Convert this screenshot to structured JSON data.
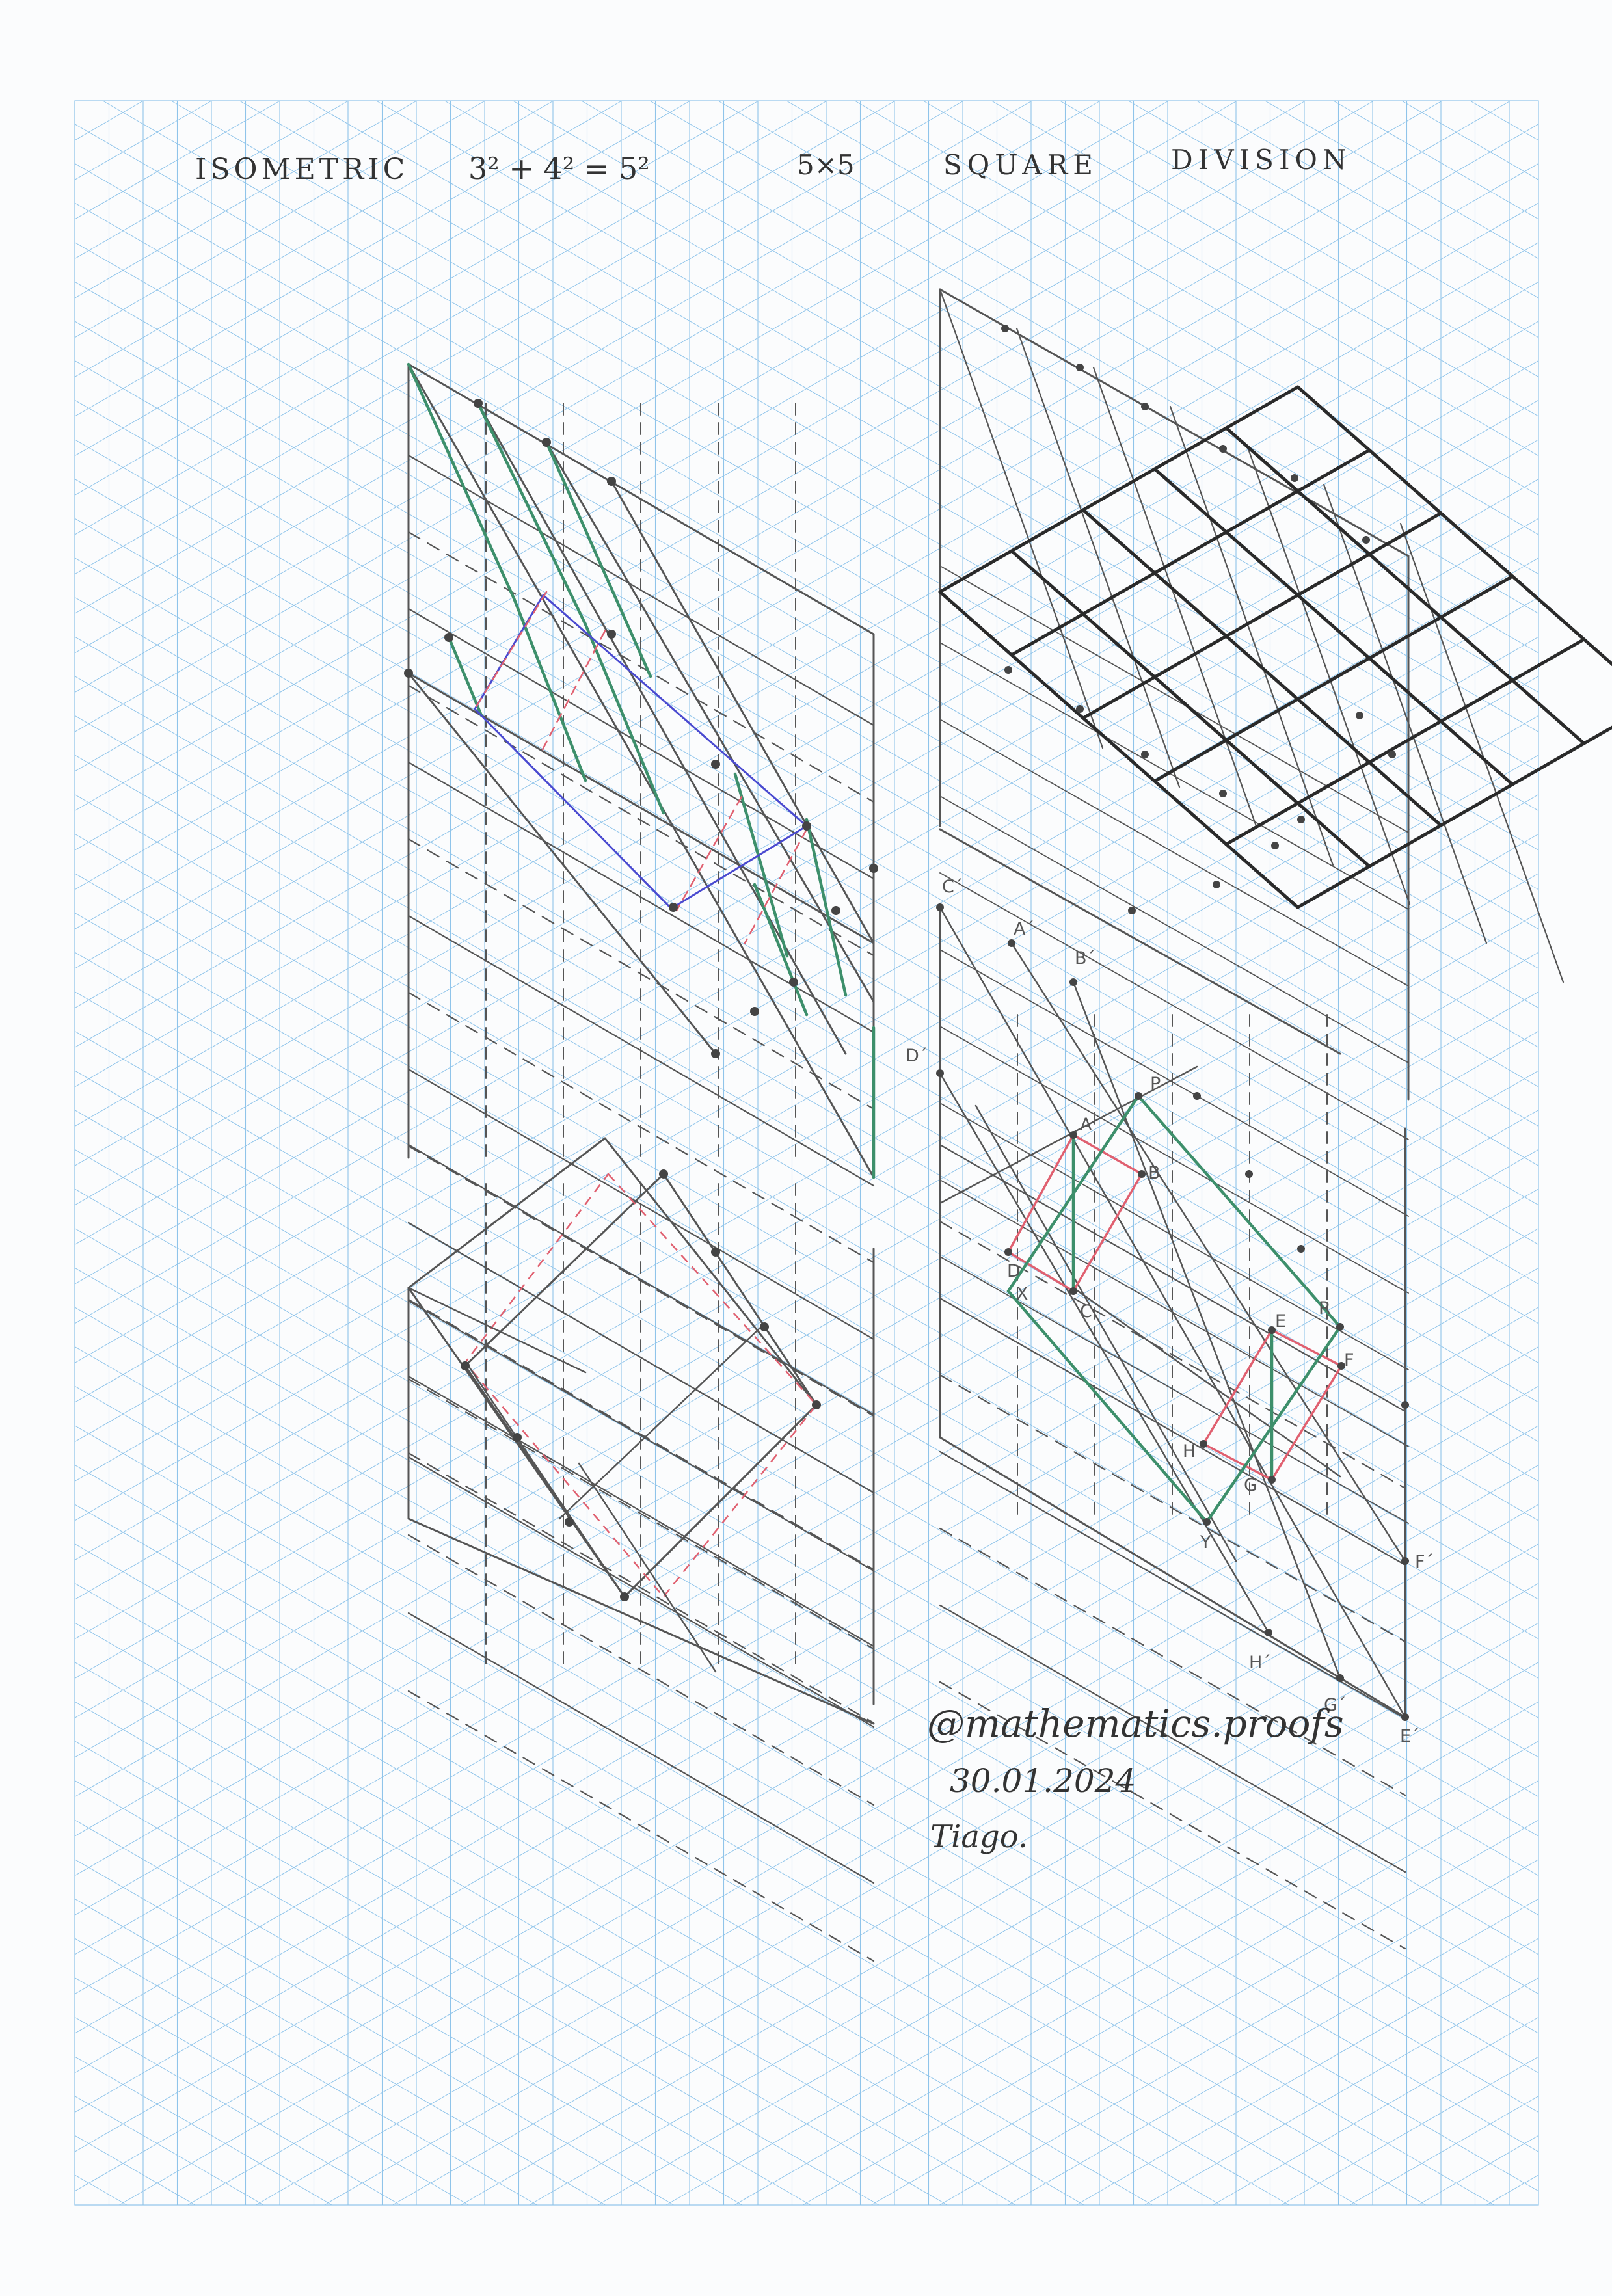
{
  "header": {
    "title": "ISOMETRIC",
    "equation": "3² + 4² = 5²",
    "grid_size": "5×5",
    "word_square": "SQUARE",
    "word_division": "DIVISION"
  },
  "labels": {
    "points": [
      "C´",
      "A´",
      "B´",
      "D´",
      "P",
      "A",
      "B",
      "D",
      "X",
      "C",
      "E",
      "R",
      "F",
      "H",
      "G",
      "Y",
      "F´",
      "H´",
      "G´",
      "E´"
    ]
  },
  "signature": {
    "handle": "@mathematics.proofs",
    "date": "30.01.2024",
    "name": "Tiago."
  },
  "colors": {
    "grid": "#8fc4ea",
    "pencil": "#555555",
    "dark": "#2a2a2a",
    "green": "#3d8f6b",
    "blue": "#4a4ad0",
    "red": "#e06070"
  }
}
